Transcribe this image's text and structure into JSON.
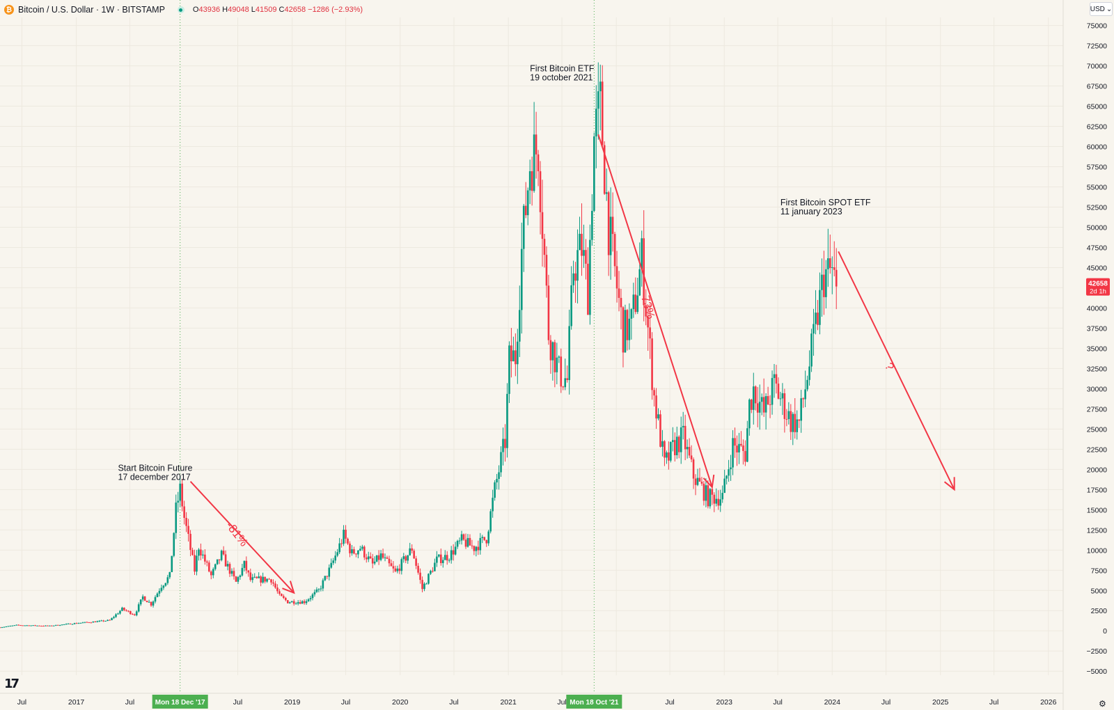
{
  "header": {
    "symbol_title": "Bitcoin / U.S. Dollar · 1W · BITSTAMP",
    "ohlc": {
      "o_label": "O",
      "o": "43936",
      "h_label": "H",
      "h": "49048",
      "l_label": "L",
      "l": "41509",
      "c_label": "C",
      "c": "42658",
      "change": "−1286 (−2.93%)"
    }
  },
  "currency_button": {
    "label": "USD",
    "icon": "chevron-down-icon"
  },
  "price_tag": {
    "price": "42658",
    "countdown": "2d 1h",
    "value": 42658,
    "color": "#f23645"
  },
  "logo": {
    "text": "17"
  },
  "colors": {
    "up": "#089981",
    "down": "#f23645",
    "annotation": "#f23645",
    "crosshair": "#4caf50",
    "background": "#f8f5ee",
    "grid": "#ede9df"
  },
  "chart_data": {
    "type": "candlestick",
    "x_axis": {
      "time_range": [
        "2016-04-18",
        "2026-02-20"
      ],
      "tick_labels": [
        {
          "date": "2016-07-01",
          "label": "Jul"
        },
        {
          "date": "2017-01-01",
          "label": "2017"
        },
        {
          "date": "2017-07-01",
          "label": "Jul"
        },
        {
          "date": "2018-07-01",
          "label": "Jul"
        },
        {
          "date": "2019-01-01",
          "label": "2019"
        },
        {
          "date": "2019-07-01",
          "label": "Jul"
        },
        {
          "date": "2020-01-01",
          "label": "2020"
        },
        {
          "date": "2020-07-01",
          "label": "Jul"
        },
        {
          "date": "2021-01-01",
          "label": "2021"
        },
        {
          "date": "2022-07-01",
          "label": "Jul"
        },
        {
          "date": "2023-01-01",
          "label": "2023"
        },
        {
          "date": "2023-07-01",
          "label": "Jul"
        },
        {
          "date": "2024-01-01",
          "label": "2024"
        },
        {
          "date": "2024-07-01",
          "label": "Jul"
        },
        {
          "date": "2025-01-01",
          "label": "2025"
        },
        {
          "date": "2025-07-01",
          "label": "Jul"
        },
        {
          "date": "2026-01-01",
          "label": "2026"
        }
      ],
      "partial_labels": [
        {
          "date": "2021-07-01",
          "label": "Jul"
        },
        {
          "date": "2022-01-01",
          "label": "2"
        }
      ],
      "highlight_labels": [
        {
          "date": "2017-12-18",
          "label": "Mon 18 Dec '17"
        },
        {
          "date": "2021-10-18",
          "label": "Mon 18 Oct '21"
        }
      ]
    },
    "y_axis": {
      "range": [
        -5500,
        76000
      ],
      "tick_step": 2500,
      "tick_min": -5000,
      "tick_max": 75000
    },
    "vertical_markers": [
      "2017-12-18",
      "2021-10-18"
    ],
    "anchors": [
      [
        "2016-04-18",
        430
      ],
      [
        "2016-06-13",
        700
      ],
      [
        "2016-10-03",
        610
      ],
      [
        "2017-01-02",
        950
      ],
      [
        "2017-03-13",
        1150
      ],
      [
        "2017-04-24",
        1300
      ],
      [
        "2017-06-05",
        2700
      ],
      [
        "2017-07-17",
        2000
      ],
      [
        "2017-08-14",
        4200
      ],
      [
        "2017-09-11",
        3300
      ],
      [
        "2017-10-16",
        5600
      ],
      [
        "2017-11-13",
        6800
      ],
      [
        "2017-12-04",
        15000
      ],
      [
        "2017-12-18",
        17500
      ],
      [
        "2018-01-01",
        14000
      ],
      [
        "2018-02-05",
        7500
      ],
      [
        "2018-02-19",
        10500
      ],
      [
        "2018-04-02",
        6800
      ],
      [
        "2018-05-07",
        9400
      ],
      [
        "2018-06-25",
        6000
      ],
      [
        "2018-07-23",
        8200
      ],
      [
        "2018-08-13",
        6300
      ],
      [
        "2018-10-22",
        6400
      ],
      [
        "2018-11-19",
        4300
      ],
      [
        "2018-12-17",
        3600
      ],
      [
        "2019-02-11",
        3600
      ],
      [
        "2019-04-01",
        5000
      ],
      [
        "2019-05-13",
        8000
      ],
      [
        "2019-06-24",
        11800
      ],
      [
        "2019-07-22",
        9600
      ],
      [
        "2019-08-19",
        10300
      ],
      [
        "2019-09-30",
        8200
      ],
      [
        "2019-10-28",
        9300
      ],
      [
        "2019-12-16",
        7200
      ],
      [
        "2020-02-10",
        10200
      ],
      [
        "2020-03-16",
        5200
      ],
      [
        "2020-05-04",
        8800
      ],
      [
        "2020-06-15",
        9300
      ],
      [
        "2020-07-27",
        11200
      ],
      [
        "2020-09-07",
        10300
      ],
      [
        "2020-10-19",
        11500
      ],
      [
        "2020-11-16",
        17500
      ],
      [
        "2020-12-21",
        23500
      ],
      [
        "2021-01-04",
        33500
      ],
      [
        "2021-01-25",
        34000
      ],
      [
        "2021-02-15",
        47000
      ],
      [
        "2021-03-15",
        58000
      ],
      [
        "2021-04-12",
        60000
      ],
      [
        "2021-05-17",
        37000
      ],
      [
        "2021-06-21",
        32000
      ],
      [
        "2021-07-19",
        31000
      ],
      [
        "2021-08-09",
        45000
      ],
      [
        "2021-09-06",
        47500
      ],
      [
        "2021-09-27",
        42000
      ],
      [
        "2021-10-18",
        61000
      ],
      [
        "2021-11-08",
        65000
      ],
      [
        "2021-12-06",
        50000
      ],
      [
        "2022-01-24",
        37000
      ],
      [
        "2022-02-21",
        38000
      ],
      [
        "2022-03-28",
        46000
      ],
      [
        "2022-05-09",
        29000
      ],
      [
        "2022-06-13",
        20500
      ],
      [
        "2022-07-18",
        23000
      ],
      [
        "2022-08-15",
        24000
      ],
      [
        "2022-09-19",
        19200
      ],
      [
        "2022-11-07",
        16500
      ],
      [
        "2022-12-26",
        16600
      ],
      [
        "2023-01-30",
        23000
      ],
      [
        "2023-03-13",
        22000
      ],
      [
        "2023-03-27",
        28000
      ],
      [
        "2023-04-10",
        30000
      ],
      [
        "2023-05-15",
        27000
      ],
      [
        "2023-06-19",
        30500
      ],
      [
        "2023-08-14",
        26000
      ],
      [
        "2023-09-11",
        25800
      ],
      [
        "2023-10-23",
        34500
      ],
      [
        "2023-12-04",
        44000
      ],
      [
        "2024-01-01",
        44500
      ],
      [
        "2024-01-15",
        42658
      ]
    ],
    "annotations": [
      {
        "type": "text",
        "lines": [
          "Start Bitcoin Future",
          "17 december 2017"
        ],
        "date": "2017-05-22",
        "price": 19800
      },
      {
        "type": "text",
        "lines": [
          "First Bitcoin ETF",
          "19 october 2021"
        ],
        "date": "2021-03-15",
        "price": 69300
      },
      {
        "type": "text",
        "lines": [
          "First Bitcoin SPOT ETF",
          "11 january 2023"
        ],
        "date": "2023-07-10",
        "price": 52700
      },
      {
        "type": "arrow",
        "from": [
          "2018-01-22",
          18500
        ],
        "to": [
          "2019-01-07",
          4700
        ]
      },
      {
        "type": "arrow",
        "from": [
          "2021-11-01",
          61500
        ],
        "to": [
          "2022-11-21",
          17800
        ]
      },
      {
        "type": "arrow",
        "from": [
          "2024-01-22",
          47000
        ],
        "to": [
          "2025-02-17",
          17500
        ]
      },
      {
        "type": "label",
        "text": "-81%",
        "date": "2018-06-18",
        "price": 11700,
        "angle": 52
      },
      {
        "type": "label",
        "text": "-73%",
        "date": "2022-04-04",
        "price": 40200,
        "angle": 75
      },
      {
        "type": "label",
        "text": "?",
        "date": "2024-07-01",
        "price": 32500,
        "angle": 60
      }
    ]
  }
}
